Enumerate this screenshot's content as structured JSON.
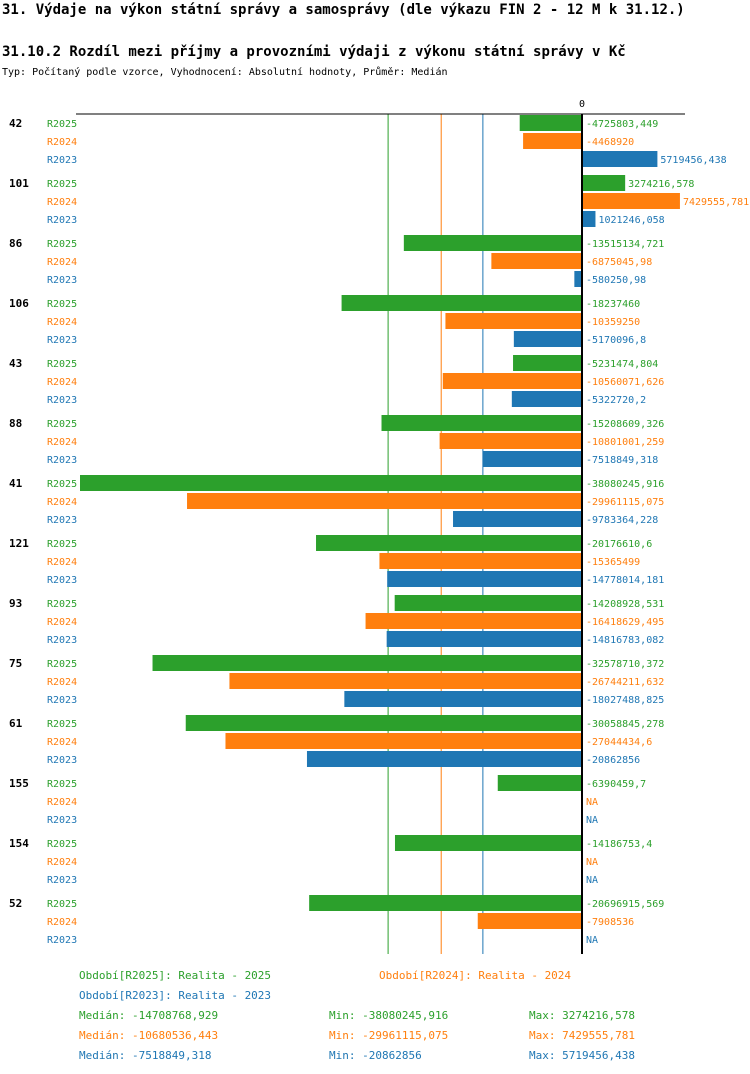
{
  "header": {
    "title": "31. Výdaje na výkon státní správy a samosprávy (dle výkazu FIN 2 - 12 M k 31.12.)",
    "subtitle": "31.10.2 Rozdíl mezi příjmy a provozními výdaji z výkonu státní správy v Kč",
    "meta": "Typ: Počítaný podle vzorce, Vyhodnocení: Absolutní hodnoty, Průměr: Medián"
  },
  "colors": {
    "R2025": "#2ca02c",
    "R2024": "#ff7f0e",
    "R2023": "#1f77b4"
  },
  "chart_data": {
    "type": "bar",
    "orientation": "horizontal",
    "title": "31.10.2 Rozdíl mezi příjmy a provozními výdaji z výkonu státní správy v Kč",
    "zero_label": "0",
    "xlim": [
      -38500000,
      7900000
    ],
    "series_names": [
      "R2025",
      "R2024",
      "R2023"
    ],
    "groups": [
      {
        "id": "42",
        "values": [
          -4725803.449,
          -4468920,
          5719456.438
        ],
        "labels": [
          "-4725803,449",
          "-4468920",
          "5719456,438"
        ]
      },
      {
        "id": "101",
        "values": [
          3274216.578,
          7429555.781,
          1021246.058
        ],
        "labels": [
          "3274216,578",
          "7429555,781",
          "1021246,058"
        ]
      },
      {
        "id": "86",
        "values": [
          -13515134.721,
          -6875045.98,
          -580250.98
        ],
        "labels": [
          "-13515134,721",
          "-6875045,98",
          "-580250,98"
        ]
      },
      {
        "id": "106",
        "values": [
          -18237460,
          -10359250,
          -5170096.8
        ],
        "labels": [
          "-18237460",
          "-10359250",
          "-5170096,8"
        ]
      },
      {
        "id": "43",
        "values": [
          -5231474.804,
          -10560071.626,
          -5322720.2
        ],
        "labels": [
          "-5231474,804",
          "-10560071,626",
          "-5322720,2"
        ]
      },
      {
        "id": "88",
        "values": [
          -15208609.326,
          -10801001.259,
          -7518849.318
        ],
        "labels": [
          "-15208609,326",
          "-10801001,259",
          "-7518849,318"
        ]
      },
      {
        "id": "41",
        "values": [
          -38080245.916,
          -29961115.075,
          -9783364.228
        ],
        "labels": [
          "-38080245,916",
          "-29961115,075",
          "-9783364,228"
        ]
      },
      {
        "id": "121",
        "values": [
          -20176610.6,
          -15365499,
          -14778014.181
        ],
        "labels": [
          "-20176610,6",
          "-15365499",
          "-14778014,181"
        ]
      },
      {
        "id": "93",
        "values": [
          -14208928.531,
          -16418629.495,
          -14816783.082
        ],
        "labels": [
          "-14208928,531",
          "-16418629,495",
          "-14816783,082"
        ]
      },
      {
        "id": "75",
        "values": [
          -32578710.372,
          -26744211.632,
          -18027488.825
        ],
        "labels": [
          "-32578710,372",
          "-26744211,632",
          "-18027488,825"
        ]
      },
      {
        "id": "61",
        "values": [
          -30058845.278,
          -27044434.6,
          -20862856
        ],
        "labels": [
          "-30058845,278",
          "-27044434,6",
          "-20862856"
        ]
      },
      {
        "id": "155",
        "values": [
          -6390459.7,
          null,
          null
        ],
        "labels": [
          "-6390459,7",
          "NA",
          "NA"
        ]
      },
      {
        "id": "154",
        "values": [
          -14186753.4,
          null,
          null
        ],
        "labels": [
          "-14186753,4",
          "NA",
          "NA"
        ]
      },
      {
        "id": "52",
        "values": [
          -20696915.569,
          -7908536,
          null
        ],
        "labels": [
          "-20696915,569",
          "-7908536",
          "NA"
        ]
      }
    ],
    "median_lines": [
      -14708768.929,
      -10680536.443,
      -7518849.318
    ]
  },
  "legend": {
    "r2025": "Období[R2025]: Realita - 2025",
    "r2024": "Období[R2024]: Realita - 2024",
    "r2023": "Období[R2023]: Realita - 2023"
  },
  "stats": {
    "r2025": {
      "median": "Medián: -14708768,929",
      "min": "Min: -38080245,916",
      "max": "Max: 3274216,578"
    },
    "r2024": {
      "median": "Medián: -10680536,443",
      "min": "Min: -29961115,075",
      "max": "Max: 7429555,781"
    },
    "r2023": {
      "median": "Medián: -7518849,318",
      "min": "Min: -20862856",
      "max": "Max: 5719456,438"
    }
  }
}
